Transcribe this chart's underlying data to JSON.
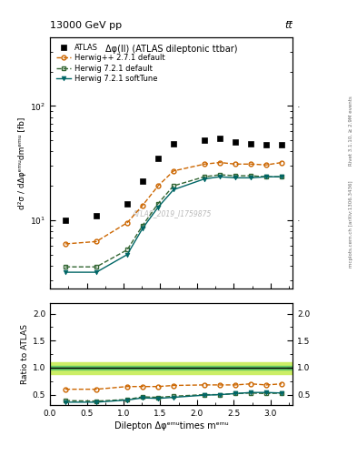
{
  "title_top": "13000 GeV pp",
  "title_right": "tt̅",
  "panel_title": "Δφ(ll) (ATLAS dileptonic ttbar)",
  "watermark": "ATLAS_2019_I1759875",
  "right_label": "mcplots.cern.ch [arXiv:1306.3436]",
  "right_label2": "Rivet 3.1.10, ≥ 2.9M events",
  "xlabel": "Dilepton Δφᵉᵐᵘtimes mᵉᵐᵘ",
  "ylabel_main": "d²σ / dΔφᵉᵐᵘdmᵉᵐᵘ [fb]",
  "ylabel_ratio": "Ratio to ATLAS",
  "xlim": [
    0,
    3.3
  ],
  "ylim_main": [
    2.5,
    400
  ],
  "ylim_ratio": [
    0.3,
    2.2
  ],
  "atlas_x": [
    0.21,
    0.63,
    1.05,
    1.26,
    1.47,
    1.68,
    2.1,
    2.31,
    2.52,
    2.73,
    2.94,
    3.15
  ],
  "atlas_y": [
    10.0,
    11.0,
    14.0,
    22.0,
    35.0,
    47.0,
    50.0,
    52.0,
    48.0,
    47.0,
    46.0,
    46.0
  ],
  "hpp_x": [
    0.21,
    0.63,
    1.05,
    1.26,
    1.47,
    1.68,
    2.1,
    2.31,
    2.52,
    2.73,
    2.94,
    3.15
  ],
  "hpp_y": [
    6.2,
    6.5,
    9.5,
    13.5,
    20.0,
    27.0,
    31.0,
    32.0,
    31.0,
    31.0,
    30.5,
    32.0
  ],
  "h721d_x": [
    0.21,
    0.63,
    1.05,
    1.26,
    1.47,
    1.68,
    2.1,
    2.31,
    2.52,
    2.73,
    2.94,
    3.15
  ],
  "h721d_y": [
    3.9,
    3.9,
    5.5,
    9.0,
    14.0,
    20.0,
    24.0,
    25.0,
    24.5,
    24.5,
    24.0,
    24.0
  ],
  "h721s_x": [
    0.21,
    0.63,
    1.05,
    1.26,
    1.47,
    1.68,
    2.1,
    2.31,
    2.52,
    2.73,
    2.94,
    3.15
  ],
  "h721s_y": [
    3.5,
    3.5,
    5.0,
    8.5,
    13.0,
    18.5,
    23.0,
    24.0,
    23.5,
    23.5,
    24.0,
    24.0
  ],
  "ratio_hpp_x": [
    0.21,
    0.63,
    1.05,
    1.26,
    1.47,
    1.68,
    2.1,
    2.31,
    2.52,
    2.73,
    2.94,
    3.15
  ],
  "ratio_hpp_y": [
    0.6,
    0.6,
    0.65,
    0.65,
    0.65,
    0.67,
    0.68,
    0.68,
    0.68,
    0.7,
    0.68,
    0.7
  ],
  "ratio_h721d_x": [
    0.21,
    0.63,
    1.05,
    1.26,
    1.47,
    1.68,
    2.1,
    2.31,
    2.52,
    2.73,
    2.94,
    3.15
  ],
  "ratio_h721d_y": [
    0.39,
    0.38,
    0.41,
    0.46,
    0.45,
    0.47,
    0.5,
    0.5,
    0.52,
    0.53,
    0.52,
    0.53
  ],
  "ratio_h721s_x": [
    0.21,
    0.63,
    1.05,
    1.26,
    1.47,
    1.68,
    2.1,
    2.31,
    2.52,
    2.73,
    2.94,
    3.15
  ],
  "ratio_h721s_y": [
    0.36,
    0.36,
    0.4,
    0.44,
    0.43,
    0.45,
    0.49,
    0.5,
    0.52,
    0.54,
    0.54,
    0.53
  ],
  "color_atlas": "#000000",
  "color_hpp": "#cc6600",
  "color_h721d": "#336633",
  "color_h721s": "#006666",
  "band_inner_color": "#66cc66",
  "band_outer_color": "#ccee66",
  "band_inner_low": 0.96,
  "band_inner_high": 1.04,
  "band_outer_low": 0.88,
  "band_outer_high": 1.1
}
